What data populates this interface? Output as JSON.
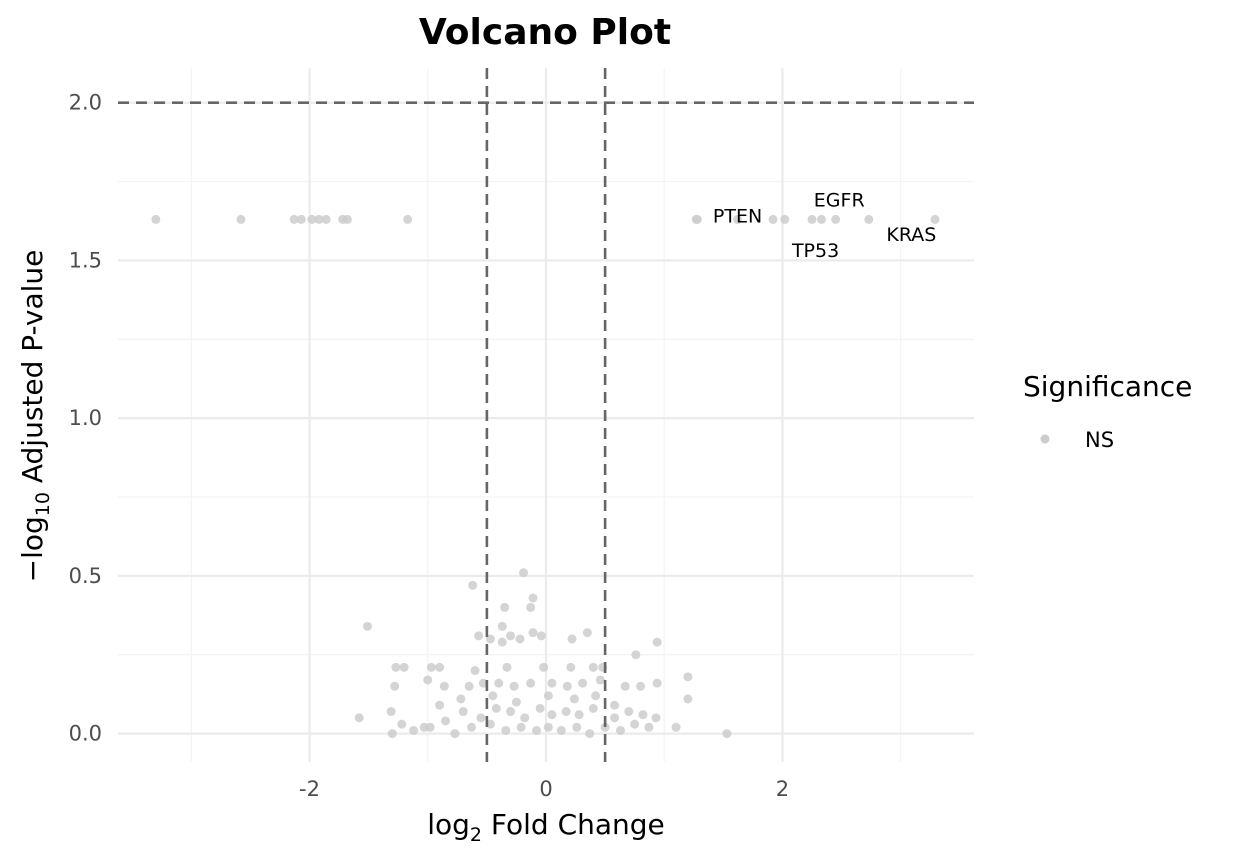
{
  "chart_data": {
    "type": "scatter",
    "title": "Volcano Plot",
    "xlabel_main": "log",
    "xlabel_sub": "2",
    "xlabel_rest": " Fold Change",
    "ylabel_prefix": "−log",
    "ylabel_sub": "10",
    "ylabel_rest": " Adjusted P-value",
    "xlim": [
      -3.62,
      3.62
    ],
    "ylim": [
      -0.09,
      2.11
    ],
    "x_ticks": [
      -2,
      0,
      2
    ],
    "x_tick_labels": [
      "-2",
      "0",
      "2"
    ],
    "y_ticks": [
      0,
      0.5,
      1,
      1.5,
      2
    ],
    "y_tick_labels": [
      "0.0",
      "0.5",
      "1.0",
      "1.5",
      "2.0"
    ],
    "grid": true,
    "ref_lines": {
      "vertical": [
        -0.5,
        0.5
      ],
      "horizontal": [
        2.0
      ]
    },
    "legend": {
      "title": "Significance",
      "placement": "right",
      "items": [
        {
          "label": "NS",
          "color": "#cccccc"
        }
      ]
    },
    "point_color": "#cccccc",
    "labels": [
      {
        "text": "PTEN",
        "x": 1.62,
        "y": 1.64
      },
      {
        "text": "EGFR",
        "x": 2.48,
        "y": 1.69
      },
      {
        "text": "TP53",
        "x": 2.28,
        "y": 1.53
      },
      {
        "text": "KRAS",
        "x": 3.09,
        "y": 1.58
      }
    ],
    "series": [
      {
        "name": "NS",
        "points": [
          [
            -3.3,
            1.63
          ],
          [
            -2.58,
            1.63
          ],
          [
            -2.13,
            1.63
          ],
          [
            -2.07,
            1.63
          ],
          [
            -1.98,
            1.63
          ],
          [
            -1.92,
            1.63
          ],
          [
            -1.86,
            1.63
          ],
          [
            -1.72,
            1.63
          ],
          [
            -1.68,
            1.63
          ],
          [
            -1.17,
            1.63
          ],
          [
            1.27,
            1.63
          ],
          [
            1.28,
            1.63
          ],
          [
            1.62,
            1.63
          ],
          [
            1.92,
            1.63
          ],
          [
            2.02,
            1.63
          ],
          [
            2.25,
            1.63
          ],
          [
            2.33,
            1.63
          ],
          [
            2.45,
            1.63
          ],
          [
            2.73,
            1.63
          ],
          [
            3.29,
            1.63
          ],
          [
            -0.19,
            0.51
          ],
          [
            -0.62,
            0.47
          ],
          [
            -0.11,
            0.43
          ],
          [
            -0.35,
            0.4
          ],
          [
            -0.13,
            0.4
          ],
          [
            -1.51,
            0.34
          ],
          [
            -0.37,
            0.34
          ],
          [
            -0.11,
            0.32
          ],
          [
            -0.57,
            0.31
          ],
          [
            -0.3,
            0.31
          ],
          [
            -0.04,
            0.31
          ],
          [
            -0.22,
            0.3
          ],
          [
            -0.47,
            0.3
          ],
          [
            -0.37,
            0.29
          ],
          [
            0.22,
            0.3
          ],
          [
            0.35,
            0.32
          ],
          [
            0.94,
            0.29
          ],
          [
            0.76,
            0.25
          ],
          [
            -1.27,
            0.21
          ],
          [
            -1.2,
            0.21
          ],
          [
            -0.97,
            0.21
          ],
          [
            -0.9,
            0.21
          ],
          [
            -0.6,
            0.2
          ],
          [
            -0.33,
            0.21
          ],
          [
            -0.02,
            0.21
          ],
          [
            0.21,
            0.21
          ],
          [
            0.4,
            0.21
          ],
          [
            0.48,
            0.21
          ],
          [
            -1.28,
            0.15
          ],
          [
            -1.0,
            0.17
          ],
          [
            -0.86,
            0.15
          ],
          [
            -0.65,
            0.15
          ],
          [
            -0.53,
            0.16
          ],
          [
            -0.4,
            0.16
          ],
          [
            -0.27,
            0.15
          ],
          [
            -0.13,
            0.16
          ],
          [
            0.05,
            0.16
          ],
          [
            0.18,
            0.15
          ],
          [
            0.31,
            0.16
          ],
          [
            0.46,
            0.17
          ],
          [
            0.67,
            0.15
          ],
          [
            0.8,
            0.15
          ],
          [
            0.94,
            0.16
          ],
          [
            1.2,
            0.18
          ],
          [
            1.2,
            0.11
          ],
          [
            -1.58,
            0.05
          ],
          [
            -1.31,
            0.07
          ],
          [
            -1.22,
            0.03
          ],
          [
            -1.03,
            0.02
          ],
          [
            -0.85,
            0.04
          ],
          [
            -0.7,
            0.07
          ],
          [
            -0.55,
            0.05
          ],
          [
            -0.42,
            0.08
          ],
          [
            -0.3,
            0.07
          ],
          [
            -0.18,
            0.05
          ],
          [
            -0.05,
            0.08
          ],
          [
            0.05,
            0.06
          ],
          [
            0.17,
            0.07
          ],
          [
            0.28,
            0.06
          ],
          [
            0.4,
            0.08
          ],
          [
            0.58,
            0.05
          ],
          [
            0.7,
            0.07
          ],
          [
            0.82,
            0.06
          ],
          [
            0.93,
            0.05
          ],
          [
            1.1,
            0.02
          ],
          [
            -1.3,
            0.0
          ],
          [
            -1.12,
            0.01
          ],
          [
            -0.98,
            0.02
          ],
          [
            -0.77,
            0.0
          ],
          [
            -0.63,
            0.02
          ],
          [
            -0.47,
            0.03
          ],
          [
            -0.34,
            0.01
          ],
          [
            -0.21,
            0.02
          ],
          [
            -0.08,
            0.01
          ],
          [
            0.02,
            0.02
          ],
          [
            0.13,
            0.01
          ],
          [
            0.26,
            0.02
          ],
          [
            0.37,
            0.0
          ],
          [
            0.5,
            0.02
          ],
          [
            0.63,
            0.01
          ],
          [
            0.75,
            0.03
          ],
          [
            0.87,
            0.02
          ],
          [
            1.53,
            0.0
          ],
          [
            -0.45,
            0.12
          ],
          [
            -0.25,
            0.1
          ],
          [
            0.02,
            0.12
          ],
          [
            0.24,
            0.11
          ],
          [
            0.42,
            0.12
          ],
          [
            0.58,
            0.09
          ],
          [
            -0.72,
            0.11
          ],
          [
            -0.9,
            0.09
          ]
        ]
      }
    ]
  }
}
